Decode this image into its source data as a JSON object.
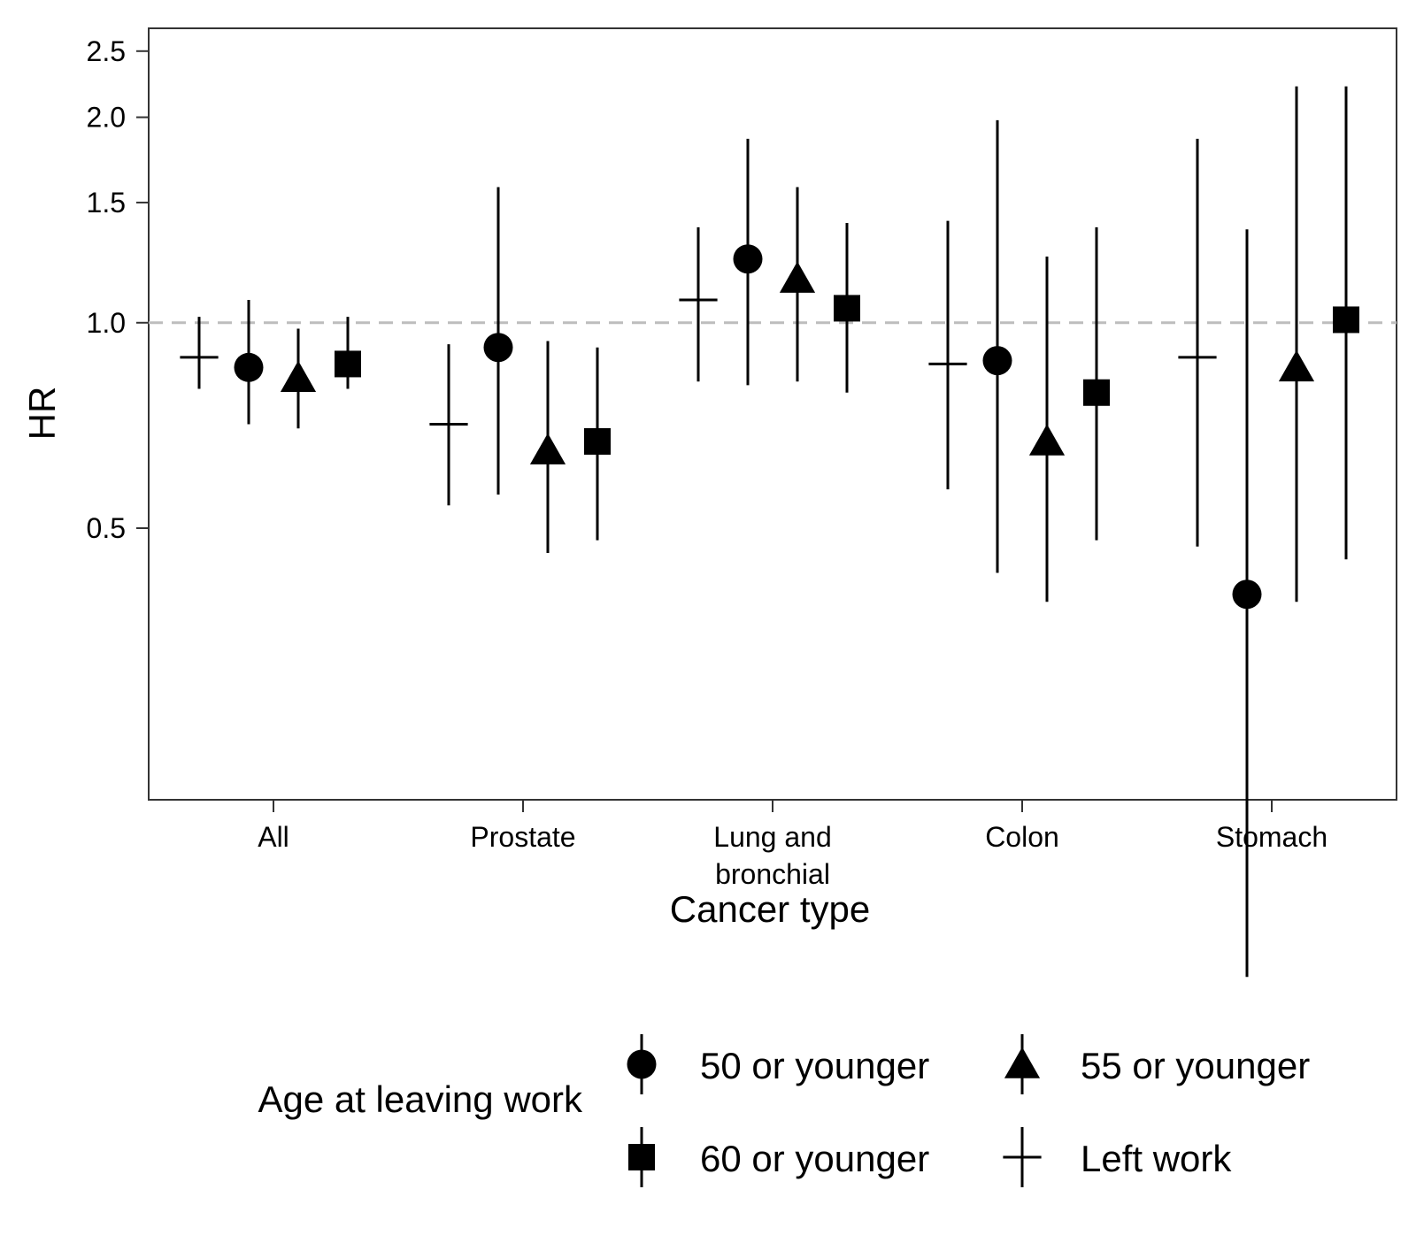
{
  "chart_data": {
    "type": "scatter",
    "subtype": "point-range (forest plot)",
    "xlabel": "Cancer type",
    "ylabel": "HR",
    "categories": [
      [
        "All"
      ],
      [
        "Prostate"
      ],
      [
        "Lung and",
        "bronchial"
      ],
      [
        "Colon"
      ],
      [
        "Stomach"
      ]
    ],
    "y_scale": "log",
    "ylim": [
      0.2,
      2.7
    ],
    "yticks": [
      {
        "value": 0.5,
        "label": "0.5"
      },
      {
        "value": 1.0,
        "label": "1.0"
      },
      {
        "value": 1.5,
        "label": "1.5"
      },
      {
        "value": 2.0,
        "label": "2.0"
      },
      {
        "value": 2.5,
        "label": "2.5"
      }
    ],
    "reference_line": {
      "value": 1.0,
      "style": "dashed",
      "color": "#bdbdbd"
    },
    "grid": false,
    "legend": {
      "title": "Age at leaving work",
      "placement": "bottom",
      "entries": [
        "50 or younger",
        "55 or younger",
        "60 or younger",
        "Left work"
      ]
    },
    "series": [
      {
        "name": "Left work",
        "marker": "plus",
        "values": [
          0.89,
          0.71,
          1.08,
          0.87,
          0.89
        ],
        "lower": [
          0.8,
          0.54,
          0.82,
          0.57,
          0.47
        ],
        "upper": [
          1.02,
          0.93,
          1.38,
          1.41,
          1.86
        ]
      },
      {
        "name": "50 or younger",
        "marker": "circle",
        "values": [
          0.86,
          0.92,
          1.24,
          0.88,
          0.4
        ],
        "lower": [
          0.71,
          0.56,
          0.81,
          0.43,
          0.11
        ],
        "upper": [
          1.08,
          1.58,
          1.86,
          1.98,
          1.37
        ]
      },
      {
        "name": "55 or younger",
        "marker": "triangle",
        "values": [
          0.83,
          0.65,
          1.16,
          0.67,
          0.86
        ],
        "lower": [
          0.7,
          0.46,
          0.82,
          0.39,
          0.39
        ],
        "upper": [
          0.98,
          0.94,
          1.58,
          1.25,
          2.22
        ]
      },
      {
        "name": "60 or younger",
        "marker": "square",
        "values": [
          0.87,
          0.67,
          1.05,
          0.79,
          1.01
        ],
        "lower": [
          0.8,
          0.48,
          0.79,
          0.48,
          0.45
        ],
        "upper": [
          1.02,
          0.92,
          1.4,
          1.38,
          2.22
        ]
      }
    ]
  }
}
